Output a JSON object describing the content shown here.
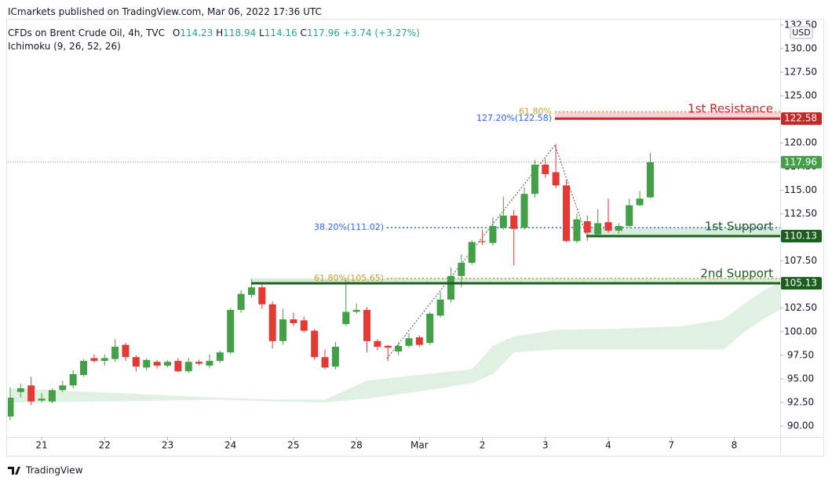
{
  "header": {
    "published": "ICmarkets published on TradingView.com, Mar 06, 2022 17:36 UTC",
    "brand": "TradingView"
  },
  "legend": {
    "symbol": "CFDs on Brent Crude Oil, 4h, TVC",
    "o": "O",
    "h": "H",
    "l": "L",
    "c": "C",
    "change": "+3.74 (+3.27%)",
    "indicator": "Ichimoku (9, 26, 52, 26)"
  },
  "chart_data": {
    "type": "candlestick",
    "currency": "USD",
    "up_color": "#43a047",
    "down_color": "#e53935",
    "open": [
      91.0,
      93.6,
      94.3,
      92.7,
      92.6,
      93.8,
      94.3,
      95.4,
      97.2,
      96.9,
      97.1,
      98.6,
      97.3,
      96.2,
      96.8,
      96.4,
      96.9,
      95.8,
      96.8,
      96.4,
      96.9,
      97.8,
      102.3,
      103.9,
      104.7,
      102.9,
      99.0,
      101.3,
      101.2,
      100.1,
      97.3,
      96.3,
      100.8,
      102.1,
      102.3,
      99.0,
      98.5,
      97.9,
      98.5,
      99.4,
      98.8,
      101.7,
      103.4,
      105.9,
      107.3,
      109.6,
      109.4,
      111.0,
      112.3,
      111.0,
      114.6,
      117.7,
      116.9,
      115.5,
      109.6,
      111.7,
      110.3,
      111.6,
      110.7,
      111.2,
      113.4,
      114.23
    ],
    "high": [
      94.1,
      94.5,
      95.2,
      93.5,
      94.0,
      94.8,
      95.9,
      97.1,
      97.6,
      97.6,
      99.2,
      98.8,
      97.5,
      97.2,
      97.0,
      97.0,
      97.2,
      97.2,
      97.0,
      97.6,
      98.0,
      102.5,
      104.4,
      105.6,
      105.0,
      103.2,
      102.4,
      102.0,
      101.6,
      100.3,
      98.1,
      98.9,
      105.5,
      103.0,
      102.6,
      99.2,
      98.6,
      98.8,
      99.8,
      99.6,
      102.1,
      104.2,
      106.8,
      108.2,
      109.7,
      110.8,
      112.1,
      114.3,
      112.9,
      115.3,
      118.2,
      118.3,
      119.9,
      116.1,
      112.5,
      112.3,
      113.0,
      114.1,
      111.5,
      114.1,
      114.9,
      118.94
    ],
    "low": [
      90.6,
      93.0,
      92.2,
      92.5,
      92.4,
      93.6,
      94.0,
      95.2,
      96.7,
      96.4,
      96.8,
      96.9,
      95.8,
      95.9,
      96.1,
      96.2,
      95.7,
      95.6,
      96.4,
      96.1,
      96.7,
      97.6,
      102.0,
      103.6,
      102.4,
      98.2,
      98.6,
      100.6,
      99.9,
      97.0,
      96.0,
      96.0,
      100.6,
      101.9,
      97.8,
      98.0,
      96.9,
      97.5,
      98.3,
      98.4,
      98.6,
      101.5,
      103.1,
      104.7,
      107.1,
      109.2,
      109.1,
      110.8,
      107.0,
      110.8,
      114.2,
      116.3,
      115.2,
      109.5,
      109.4,
      109.6,
      110.1,
      110.5,
      110.4,
      111.0,
      113.3,
      114.16
    ],
    "close": [
      93.0,
      94.0,
      92.6,
      92.9,
      93.8,
      94.3,
      95.5,
      96.9,
      96.9,
      97.2,
      98.4,
      97.3,
      96.3,
      97.0,
      96.4,
      96.8,
      95.8,
      96.8,
      96.6,
      96.9,
      97.8,
      102.3,
      104.0,
      104.7,
      102.9,
      99.0,
      101.3,
      100.9,
      100.1,
      97.3,
      96.2,
      98.4,
      102.1,
      102.3,
      99.0,
      98.4,
      98.3,
      98.5,
      99.3,
      98.6,
      101.9,
      103.4,
      105.9,
      107.3,
      109.5,
      109.5,
      111.2,
      112.3,
      110.9,
      114.6,
      117.7,
      116.7,
      115.5,
      109.6,
      111.9,
      110.5,
      111.5,
      110.7,
      111.2,
      113.4,
      114.1,
      117.96
    ],
    "cloud": {
      "color": "#c8e6c9",
      "x": [
        0,
        10,
        20,
        25,
        30,
        34,
        38,
        44,
        46,
        48,
        52,
        58,
        64,
        68,
        70,
        72,
        73.4
      ],
      "upper": [
        94.0,
        93.5,
        93.0,
        92.8,
        92.8,
        94.8,
        95.3,
        96.0,
        98.5,
        99.5,
        100.2,
        100.3,
        100.6,
        101.3,
        103.0,
        104.5,
        105.2
      ],
      "lower": [
        92.5,
        92.6,
        92.8,
        92.6,
        92.5,
        92.9,
        93.5,
        94.5,
        95.5,
        97.8,
        98.1,
        98.1,
        98.1,
        98.1,
        100.0,
        101.5,
        102.3
      ]
    },
    "levels": [
      {
        "name": "1st Resistance",
        "value": 122.58,
        "color": "#c62828"
      },
      {
        "name": "1st Support",
        "value": 110.13,
        "color": "#1b5e20"
      },
      {
        "name": "2nd Support",
        "value": 105.13,
        "color": "#1b5e20"
      }
    ],
    "fibs": [
      {
        "label": "61.80%",
        "value": 123.3,
        "color": "#c9a227"
      },
      {
        "label": "127.20%(122.58)",
        "value": 122.58,
        "color": "#2962ff"
      },
      {
        "label": "38.20%(111.02)",
        "value": 111.02,
        "color": "#2962ff"
      },
      {
        "label": "61.80%(105.65)",
        "value": 105.65,
        "color": "#c9a227"
      }
    ],
    "xlim": [
      -0.22,
      73.38
    ],
    "ylim": [
      88.84,
      134.32
    ],
    "xticks": [
      {
        "value": 3,
        "label": "21"
      },
      {
        "value": 9,
        "label": "22"
      },
      {
        "value": 15,
        "label": "23"
      },
      {
        "value": 21,
        "label": "24"
      },
      {
        "value": 27,
        "label": "25"
      },
      {
        "value": 33,
        "label": "28"
      },
      {
        "value": 39,
        "label": "Mar"
      },
      {
        "value": 45,
        "label": "2"
      },
      {
        "value": 51,
        "label": "3"
      },
      {
        "value": 57,
        "label": "4"
      },
      {
        "value": 63,
        "label": "7"
      },
      {
        "value": 69,
        "label": "8"
      }
    ],
    "yticks": [
      {
        "value": 90,
        "label": "90.00"
      },
      {
        "value": 92.5,
        "label": "92.50"
      },
      {
        "value": 95,
        "label": "95.00"
      },
      {
        "value": 97.5,
        "label": "97.50"
      },
      {
        "value": 100,
        "label": "100.00"
      },
      {
        "value": 102.5,
        "label": "102.50"
      },
      {
        "value": 105,
        "label": "105.00"
      },
      {
        "value": 107.5,
        "label": "107.50"
      },
      {
        "value": 110,
        "label": "110.00"
      },
      {
        "value": 112.5,
        "label": "112.50"
      },
      {
        "value": 115,
        "label": "115.00"
      },
      {
        "value": 117.5,
        "label": "117.50"
      },
      {
        "value": 120,
        "label": "120.00"
      },
      {
        "value": 122.5,
        "label": "122.50"
      },
      {
        "value": 125,
        "label": "125.00"
      },
      {
        "value": 127.5,
        "label": "127.50"
      },
      {
        "value": 130,
        "label": "130.00"
      },
      {
        "value": 132.5,
        "label": "132.50"
      }
    ]
  }
}
